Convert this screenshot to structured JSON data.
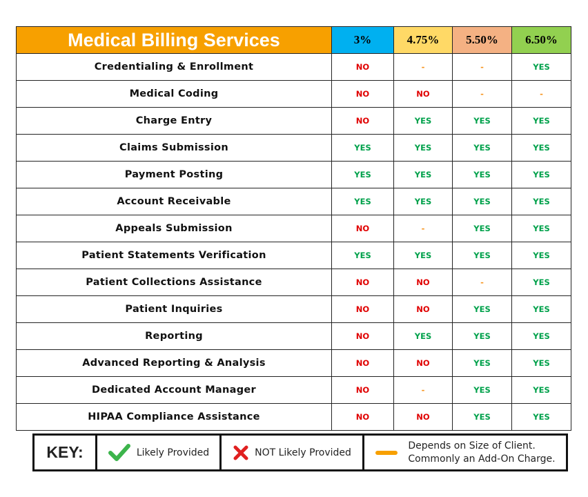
{
  "header": {
    "title": "Medical Billing Services",
    "columns": [
      {
        "label": "3%",
        "color": "#00b0f0"
      },
      {
        "label": "4.75%",
        "color": "#ffd966"
      },
      {
        "label": "5.50%",
        "color": "#f4b183"
      },
      {
        "label": "6.50%",
        "color": "#92d050"
      }
    ]
  },
  "value_colors": {
    "YES": "#00a14b",
    "NO": "#e00000",
    "-": "#f7941d"
  },
  "rows": [
    {
      "label": "Credentialing & Enrollment",
      "values": [
        "NO",
        "-",
        "-",
        "YES"
      ]
    },
    {
      "label": "Medical Coding",
      "values": [
        "NO",
        "NO",
        "-",
        "-"
      ]
    },
    {
      "label": "Charge Entry",
      "values": [
        "NO",
        "YES",
        "YES",
        "YES"
      ]
    },
    {
      "label": "Claims Submission",
      "values": [
        "YES",
        "YES",
        "YES",
        "YES"
      ]
    },
    {
      "label": "Payment Posting",
      "values": [
        "YES",
        "YES",
        "YES",
        "YES"
      ]
    },
    {
      "label": "Account Receivable",
      "values": [
        "YES",
        "YES",
        "YES",
        "YES"
      ]
    },
    {
      "label": "Appeals Submission",
      "values": [
        "NO",
        "-",
        "YES",
        "YES"
      ]
    },
    {
      "label": "Patient Statements Verification",
      "values": [
        "YES",
        "YES",
        "YES",
        "YES"
      ]
    },
    {
      "label": "Patient Collections Assistance",
      "values": [
        "NO",
        "NO",
        "-",
        "YES"
      ]
    },
    {
      "label": "Patient Inquiries",
      "values": [
        "NO",
        "NO",
        "YES",
        "YES"
      ]
    },
    {
      "label": "Reporting",
      "values": [
        "NO",
        "YES",
        "YES",
        "YES"
      ]
    },
    {
      "label": "Advanced Reporting & Analysis",
      "values": [
        "NO",
        "NO",
        "YES",
        "YES"
      ]
    },
    {
      "label": "Dedicated Account Manager",
      "values": [
        "NO",
        "-",
        "YES",
        "YES"
      ]
    },
    {
      "label": "HIPAA Compliance Assistance",
      "values": [
        "NO",
        "NO",
        "YES",
        "YES"
      ]
    }
  ],
  "key": {
    "title": "KEY:",
    "items": [
      {
        "label": "Likely Provided"
      },
      {
        "label": "NOT Likely Provided"
      },
      {
        "lines": [
          "Depends on Size of Client.",
          "Commonly an Add-On Charge."
        ]
      }
    ]
  }
}
